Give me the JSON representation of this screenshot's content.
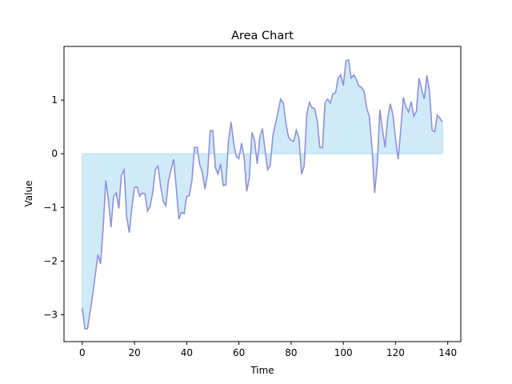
{
  "chart_data": {
    "type": "area",
    "title": "Area Chart",
    "xlabel": "Time",
    "ylabel": "Value",
    "xlim": [
      -7,
      145
    ],
    "ylim": [
      -3.5,
      2.0
    ],
    "xticks": [
      0,
      20,
      40,
      60,
      80,
      100,
      120,
      140
    ],
    "yticks": [
      -3,
      -2,
      -1,
      0,
      1
    ],
    "grid": false,
    "legend": "none",
    "line_color": "#8f8fe0",
    "fill_color": "#87ceeb",
    "fill_alpha": 0.4,
    "x": [
      0,
      1,
      2,
      3,
      4,
      5,
      6,
      7,
      8,
      9,
      10,
      11,
      12,
      13,
      14,
      15,
      16,
      17,
      18,
      19,
      20,
      21,
      22,
      23,
      24,
      25,
      26,
      27,
      28,
      29,
      30,
      31,
      32,
      33,
      34,
      35,
      36,
      37,
      38,
      39,
      40,
      41,
      42,
      43,
      44,
      45,
      46,
      47,
      48,
      49,
      50,
      51,
      52,
      53,
      54,
      55,
      56,
      57,
      58,
      59,
      60,
      61,
      62,
      63,
      64,
      65,
      66,
      67,
      68,
      69,
      70,
      71,
      72,
      73,
      74,
      75,
      76,
      77,
      78,
      79,
      80,
      81,
      82,
      83,
      84,
      85,
      86,
      87,
      88,
      89,
      90,
      91,
      92,
      93,
      94,
      95,
      96,
      97,
      98,
      99,
      100,
      101,
      102,
      103,
      104,
      105,
      106,
      107,
      108,
      109,
      110,
      111,
      112,
      113,
      114,
      115,
      116,
      117,
      118,
      119,
      120,
      121,
      122,
      123,
      124,
      125,
      126,
      127,
      128,
      129,
      130,
      131,
      132,
      133,
      134,
      135,
      136,
      137,
      138
    ],
    "values": [
      -2.88,
      -3.26,
      -3.26,
      -2.95,
      -2.62,
      -2.25,
      -1.88,
      -2.05,
      -1.38,
      -0.5,
      -0.85,
      -1.37,
      -0.8,
      -0.73,
      -1.02,
      -0.4,
      -0.3,
      -1.17,
      -1.47,
      -1.0,
      -0.63,
      -0.62,
      -0.79,
      -0.73,
      -0.75,
      -1.07,
      -0.98,
      -0.72,
      -0.29,
      -0.23,
      -0.6,
      -0.88,
      -0.97,
      -0.51,
      -0.3,
      -0.1,
      -0.63,
      -1.22,
      -1.09,
      -1.12,
      -0.8,
      -0.78,
      -0.5,
      0.12,
      0.12,
      -0.21,
      -0.35,
      -0.66,
      -0.37,
      0.43,
      0.43,
      -0.26,
      -0.38,
      -0.19,
      -0.59,
      -0.58,
      0.23,
      0.59,
      0.2,
      -0.05,
      -0.09,
      0.2,
      -0.07,
      -0.7,
      -0.45,
      0.4,
      0.25,
      -0.19,
      0.3,
      0.47,
      0.08,
      -0.3,
      -0.22,
      0.33,
      0.56,
      0.78,
      1.02,
      0.95,
      0.57,
      0.31,
      0.25,
      0.23,
      0.44,
      0.3,
      -0.38,
      -0.23,
      0.73,
      0.96,
      0.86,
      0.84,
      0.62,
      0.12,
      0.11,
      0.95,
      1.02,
      0.94,
      1.12,
      1.13,
      1.41,
      1.47,
      1.27,
      1.73,
      1.75,
      1.41,
      1.47,
      1.38,
      1.26,
      1.24,
      1.15,
      0.84,
      0.69,
      0.1,
      -0.73,
      -0.2,
      0.82,
      0.45,
      0.12,
      0.66,
      0.93,
      0.73,
      0.28,
      -0.1,
      0.45,
      1.05,
      0.87,
      0.78,
      0.97,
      0.7,
      0.79,
      1.41,
      1.2,
      1.02,
      1.46,
      1.17,
      0.44,
      0.41,
      0.72,
      0.66,
      0.59
    ]
  }
}
